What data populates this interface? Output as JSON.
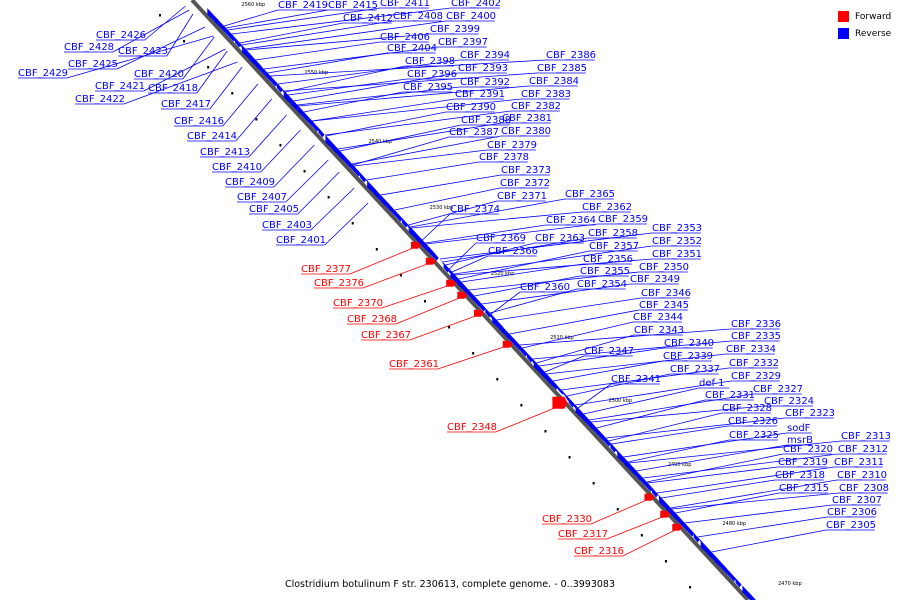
{
  "title": "Clostridium botulinum F str. 230613, complete genome. - 0..3993083",
  "legend": [
    {
      "label": "Forward",
      "color": "#ff0000"
    },
    {
      "label": "Reverse",
      "color": "#0000ff"
    }
  ],
  "colors": {
    "forward": "#ff0000",
    "reverse": "#0000ff",
    "axis": "#555555",
    "leader_forward": "#ff0000",
    "leader_reverse": "#0000ff"
  },
  "ticks": [
    "2560 kbp",
    "2550 kbp",
    "2540 kbp",
    "2530 kbp",
    "2520 kbp",
    "2510 kbp",
    "2500 kbp",
    "2490 kbp",
    "2480 kbp",
    "2470 kbp"
  ],
  "reverse_genes": [
    "CBF_2419",
    "CBF_2415",
    "CBF_2412",
    "CBF_2411",
    "CBF_2408",
    "CBF_2402",
    "CBF_2400",
    "CBF_2399",
    "CBF_2406",
    "CBF_2404",
    "CBF_2397",
    "CBF_2394",
    "CBF_2398",
    "CBF_2393",
    "CBF_2396",
    "CBF_2392",
    "CBF_2395",
    "CBF_2391",
    "CBF_2390",
    "CBF_2388",
    "CBF_2387",
    "CBF_2386",
    "CBF_2385",
    "CBF_2384",
    "CBF_2383",
    "CBF_2382",
    "CBF_2381",
    "CBF_2380",
    "CBF_2379",
    "CBF_2378",
    "CBF_2373",
    "CBF_2372",
    "CBF_2371",
    "CBF_2374",
    "CBF_2365",
    "CBF_2362",
    "CBF_2364",
    "CBF_2359",
    "CBF_2363",
    "CBF_2358",
    "CBF_2369",
    "CBF_2357",
    "CBF_2366",
    "CBF_2356",
    "CBF_2355",
    "CBF_2360",
    "CBF_2354",
    "CBF_2353",
    "CBF_2352",
    "CBF_2351",
    "CBF_2350",
    "CBF_2349",
    "CBF_2346",
    "CBF_2345",
    "CBF_2344",
    "CBF_2343",
    "CBF_2347",
    "CBF_2340",
    "CBF_2339",
    "CBF_2337",
    "CBF_2341",
    "def-1",
    "CBF_2331",
    "CBF_2336",
    "CBF_2335",
    "CBF_2334",
    "CBF_2332",
    "CBF_2329",
    "CBF_2327",
    "CBF_2328",
    "CBF_2324",
    "CBF_2326",
    "CBF_2323",
    "CBF_2325",
    "sodF",
    "msrB",
    "CBF_2320",
    "CBF_2319",
    "CBF_2318",
    "CBF_2315",
    "CBF_2313",
    "CBF_2312",
    "CBF_2311",
    "CBF_2310",
    "CBF_2308",
    "CBF_2307",
    "CBF_2306",
    "CBF_2305",
    "CBF_2426",
    "CBF_2428",
    "CBF_2423",
    "CBF_2425",
    "CBF_2429",
    "CBF_2420",
    "CBF_2421",
    "CBF_2418",
    "CBF_2422",
    "CBF_2417",
    "CBF_2416",
    "CBF_2414",
    "CBF_2413",
    "CBF_2410",
    "CBF_2409",
    "CBF_2407",
    "CBF_2405",
    "CBF_2403",
    "CBF_2401"
  ],
  "forward_genes": [
    "CBF_2377",
    "CBF_2376",
    "CBF_2370",
    "CBF_2368",
    "CBF_2367",
    "CBF_2361",
    "CBF_2348",
    "CBF_2330",
    "CBF_2317",
    "CBF_2316"
  ]
}
